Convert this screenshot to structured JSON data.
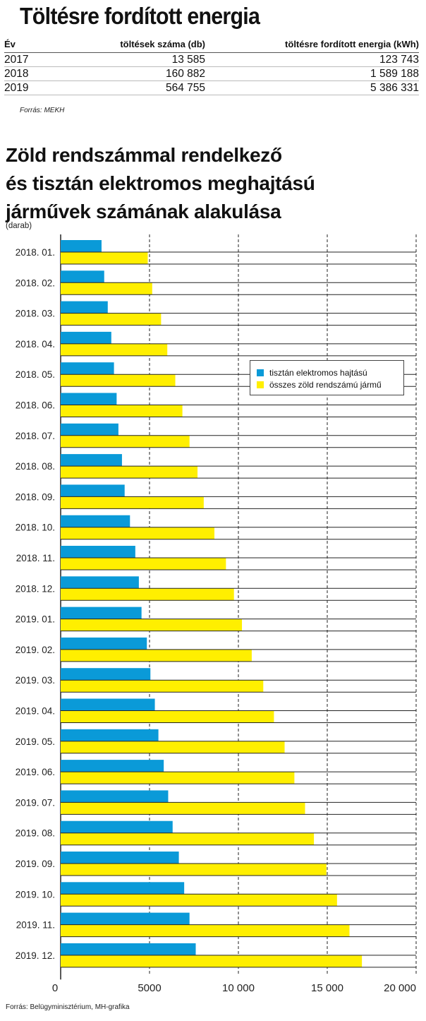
{
  "energy_table": {
    "title": "Töltésre fordított energia",
    "headers": [
      "Év",
      "töltések száma (db)",
      "töltésre fordított energia (kWh)"
    ],
    "rows": [
      [
        "2017",
        "13 585",
        "123 743"
      ],
      [
        "2018",
        "160 882",
        "1 589 188"
      ],
      [
        "2019",
        "564 755",
        "5 386 331"
      ]
    ],
    "source": "Forrás: MEKH"
  },
  "chart_title": {
    "lines": [
      "Zöld rendszámmal rendelkező",
      "és tisztán elektromos meghajtású",
      "járművek számának alakulása"
    ],
    "unit": "(darab)"
  },
  "chart_source": "Forrás: Belügyminisztérium, MH-grafika",
  "colors": {
    "blue": "#0a9ad8",
    "yellow": "#ffef00"
  },
  "chart_data": {
    "type": "bar",
    "orientation": "horizontal",
    "categories": [
      "2018. 01.",
      "2018. 02.",
      "2018. 03.",
      "2018. 04.",
      "2018. 05.",
      "2018. 06.",
      "2018. 07.",
      "2018. 08.",
      "2018. 09.",
      "2018. 10.",
      "2018. 11.",
      "2018. 12.",
      "2019. 01.",
      "2019. 02.",
      "2019. 03.",
      "2019. 04.",
      "2019. 05.",
      "2019. 06.",
      "2019. 07.",
      "2019. 08.",
      "2019. 09.",
      "2019. 10.",
      "2019. 11.",
      "2019. 12."
    ],
    "series": [
      {
        "name": "tisztán elektromos hajtású",
        "color": "#0a9ad8",
        "values": [
          2300,
          2450,
          2650,
          2850,
          3000,
          3150,
          3250,
          3450,
          3600,
          3900,
          4200,
          4400,
          4550,
          4850,
          5050,
          5300,
          5500,
          5800,
          6050,
          6300,
          6650,
          6950,
          7250,
          7600
        ]
      },
      {
        "name": "összes zöld rendszámú jármű",
        "color": "#ffef00",
        "values": [
          4900,
          5150,
          5650,
          6000,
          6450,
          6850,
          7250,
          7700,
          8050,
          8650,
          9300,
          9750,
          10200,
          10750,
          11400,
          12000,
          12600,
          13150,
          13750,
          14250,
          14950,
          15550,
          16250,
          16950
        ]
      }
    ],
    "x_ticks": [
      "0",
      "5000",
      "10 000",
      "15 000",
      "20 000"
    ],
    "xlim": [
      0,
      20000
    ],
    "legend_position": "top-right",
    "grid": "vertical dashed"
  }
}
